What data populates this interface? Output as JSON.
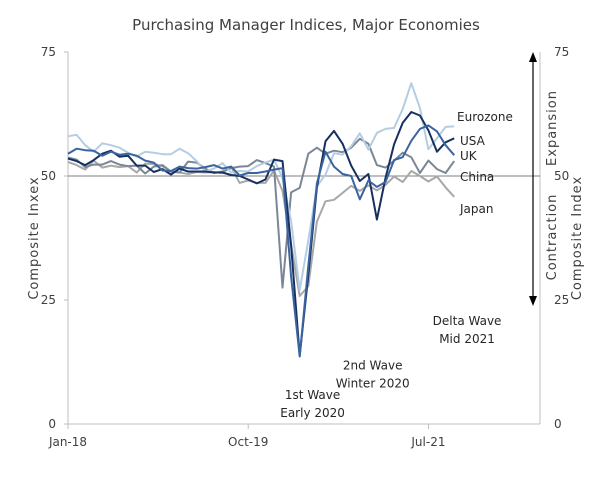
{
  "chart_data": {
    "type": "line",
    "title": "Purchasing Manager Indices, Major Economies",
    "ylabel_left": "Composite Inxex",
    "ylabel_right": "Composite Index",
    "ylim": [
      0,
      75
    ],
    "yticks": [
      0,
      25,
      50,
      75
    ],
    "x_tick_labels": [
      "Jan-18",
      "Oct-19",
      "Jul-21"
    ],
    "x_tick_index": [
      0,
      21,
      42
    ],
    "x_count": 56,
    "reference_line": 50,
    "direction_labels": {
      "up": "Expansion",
      "down": "Contraction"
    },
    "annotations": [
      {
        "lines": [
          "1st Wave",
          "Early 2020"
        ],
        "at_index": 28.5,
        "at_value": 5
      },
      {
        "lines": [
          "2nd Wave",
          "Winter 2020"
        ],
        "at_index": 35.5,
        "at_value": 11
      },
      {
        "lines": [
          "Delta Wave",
          "Mid 2021"
        ],
        "at_index": 46.5,
        "at_value": 20
      }
    ],
    "series": [
      {
        "name": "Eurozone",
        "color": "#3a64a0",
        "width": 2,
        "values": [
          54.5,
          55.5,
          55.2,
          55.1,
          54.1,
          54.9,
          54.3,
          54.5,
          54.1,
          53.1,
          52.7,
          51.1,
          51.0,
          51.9,
          51.6,
          51.5,
          51.8,
          52.2,
          51.5,
          51.9,
          50.1,
          50.6,
          50.6,
          50.9,
          51.3,
          51.6,
          29.7,
          13.6,
          31.9,
          48.5,
          54.9,
          51.9,
          50.4,
          50.0,
          45.3,
          49.1,
          47.8,
          48.8,
          53.2,
          53.8,
          57.1,
          59.5,
          60.2,
          59.0,
          56.2,
          54.2
        ]
      },
      {
        "name": "USA",
        "color": "#b5cde3",
        "width": 2,
        "values": [
          58.0,
          58.3,
          56.2,
          54.9,
          56.6,
          56.2,
          55.7,
          54.7,
          53.9,
          54.9,
          54.7,
          54.4,
          54.4,
          55.5,
          54.6,
          53.0,
          50.9,
          51.5,
          52.6,
          50.7,
          51.0,
          50.9,
          52.0,
          52.7,
          53.3,
          49.6,
          40.9,
          27.0,
          37.0,
          47.9,
          50.3,
          54.6,
          54.3,
          56.0,
          58.6,
          55.3,
          58.7,
          59.5,
          59.7,
          63.5,
          68.7,
          63.7,
          55.4,
          57.6,
          59.9,
          60.0
        ]
      },
      {
        "name": "UK",
        "color": "#17305f",
        "width": 2,
        "values": [
          53.5,
          53.0,
          52.2,
          53.2,
          54.5,
          55.1,
          53.9,
          54.1,
          52.1,
          52.1,
          50.8,
          51.4,
          50.3,
          51.5,
          50.9,
          50.9,
          50.9,
          50.7,
          50.7,
          50.2,
          50.0,
          49.3,
          48.5,
          49.3,
          53.3,
          53.0,
          36.0,
          13.8,
          30.0,
          47.7,
          57.0,
          59.1,
          56.5,
          52.1,
          49.0,
          50.4,
          41.2,
          49.6,
          56.4,
          60.7,
          62.9,
          62.2,
          59.2,
          54.9,
          56.8,
          57.6
        ]
      },
      {
        "name": "China",
        "color": "#7a8797",
        "width": 2,
        "values": [
          53.7,
          53.3,
          51.8,
          52.3,
          52.3,
          53.0,
          52.3,
          52.0,
          52.1,
          50.5,
          51.9,
          52.2,
          50.9,
          50.7,
          52.9,
          52.7,
          51.5,
          50.6,
          50.9,
          51.6,
          51.9,
          52.0,
          53.2,
          52.6,
          51.9,
          27.5,
          46.7,
          47.6,
          54.5,
          55.7,
          54.5,
          55.1,
          54.8,
          55.7,
          57.5,
          56.5,
          52.2,
          51.7,
          53.1,
          54.7,
          53.8,
          50.6,
          53.1,
          51.4,
          50.6,
          53.0
        ]
      },
      {
        "name": "Japan",
        "color": "#a8a8a8",
        "width": 2,
        "values": [
          52.8,
          52.2,
          51.3,
          53.1,
          51.7,
          52.1,
          51.8,
          52.0,
          50.7,
          52.5,
          52.4,
          52.0,
          50.9,
          50.7,
          50.4,
          50.8,
          50.7,
          50.8,
          50.6,
          51.9,
          48.6,
          49.1,
          48.6,
          48.6,
          51.1,
          47.0,
          36.2,
          25.8,
          27.8,
          40.8,
          44.9,
          45.2,
          46.6,
          48.0,
          47.0,
          48.1,
          47.1,
          48.2,
          49.9,
          48.8,
          51.0,
          50.0,
          48.9,
          49.9,
          47.7,
          45.8
        ]
      }
    ]
  }
}
